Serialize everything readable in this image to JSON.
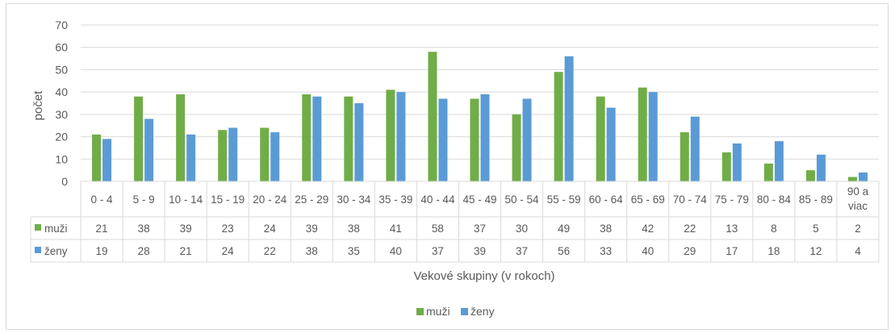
{
  "chart_data": {
    "type": "bar",
    "title": "",
    "xlabel": "Vekové skupiny (v rokoch)",
    "ylabel": "počet",
    "ylim": [
      0,
      70
    ],
    "yticks": [
      "0",
      "10",
      "20",
      "30",
      "40",
      "50",
      "60",
      "70"
    ],
    "grid": true,
    "legend_placement": "bottom",
    "data_table": true,
    "categories": [
      "0 - 4",
      "5 - 9",
      "10 - 14",
      "15 - 19",
      "20 - 24",
      "25 - 29",
      "30 - 34",
      "35 - 39",
      "40 - 44",
      "45 - 49",
      "50 - 54",
      "55 - 59",
      "60 - 64",
      "65 - 69",
      "70 - 74",
      "75 - 79",
      "80 - 84",
      "85 - 89",
      "90 a viac"
    ],
    "series": [
      {
        "name": "muži",
        "color": "#70ad47",
        "values": [
          21,
          38,
          39,
          23,
          24,
          39,
          38,
          41,
          58,
          37,
          30,
          49,
          38,
          42,
          22,
          13,
          8,
          5,
          2
        ]
      },
      {
        "name": "ženy",
        "color": "#5b9bd5",
        "values": [
          19,
          28,
          21,
          24,
          22,
          38,
          35,
          40,
          37,
          39,
          37,
          56,
          33,
          40,
          29,
          17,
          18,
          12,
          4
        ]
      }
    ]
  }
}
